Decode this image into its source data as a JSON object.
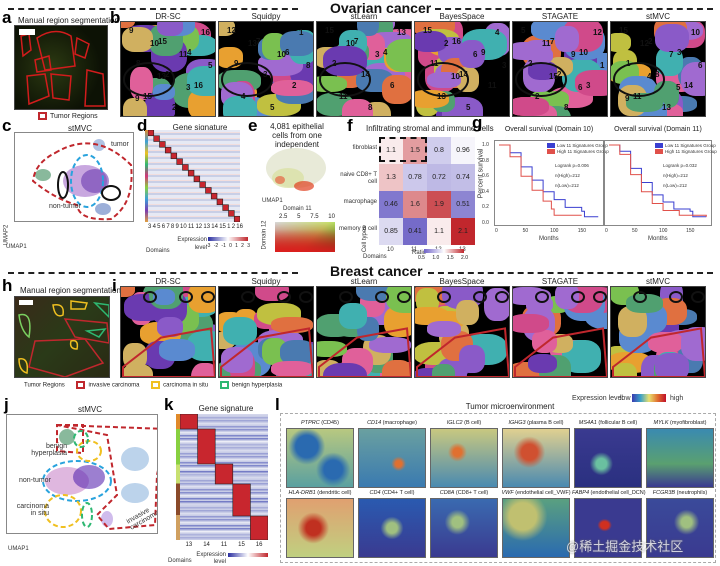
{
  "sections": {
    "ovarian": "Ovarian cancer",
    "breast": "Breast cancer"
  },
  "panels": {
    "a": {
      "label": "a",
      "title": "Manual region segmentation",
      "legend": "Tumor Regions",
      "scalebar": "1 mm"
    },
    "b": {
      "label": "b",
      "methods": [
        "DR-SC",
        "Squidpy",
        "stLearn",
        "BayesSpace",
        "STAGATE",
        "stMVC"
      ],
      "domains": [
        [
          "9",
          "15",
          "4",
          "8",
          "2",
          "16",
          "15",
          "2",
          "16",
          "10",
          "11",
          "5",
          "13",
          "3",
          "9"
        ],
        [
          "12",
          "7",
          "6",
          "9",
          "3",
          "2",
          "4",
          "5",
          "1",
          "13",
          "10",
          "8"
        ],
        [
          "15",
          "7",
          "4",
          "2",
          "14",
          "6",
          "11",
          "8",
          "13",
          "10",
          "3"
        ],
        [
          "15",
          "16",
          "9",
          "11",
          "14",
          "11",
          "13",
          "5",
          "4",
          "2",
          "6",
          "3",
          "10"
        ],
        [
          "5",
          "7",
          "10",
          "2",
          "2",
          "3",
          "2",
          "8",
          "12",
          "11",
          "9",
          "1",
          "15",
          "6"
        ],
        [
          "15",
          "2",
          "3",
          "1",
          "8",
          "14",
          "11",
          "13",
          "10",
          "12",
          "7",
          "6",
          "4",
          "5",
          "9"
        ]
      ]
    },
    "c": {
      "label": "c",
      "title": "stMVC",
      "annotations": [
        "tumor",
        "non-tumor"
      ],
      "axes": {
        "x": "UMAP1",
        "y": "UMAP2"
      },
      "clusters": [
        "5",
        "6",
        "14",
        "7",
        "2",
        "15",
        "6",
        "4",
        "10",
        "12",
        "1",
        "11",
        "13",
        "9",
        "3",
        "16"
      ]
    },
    "d": {
      "label": "d",
      "title": "Gene signature",
      "xticks": [
        "3",
        "4",
        "5",
        "6",
        "7",
        "8",
        "9",
        "10",
        "11",
        "12",
        "13",
        "14",
        "15",
        "1",
        "2",
        "16"
      ],
      "axes": {
        "x": "Domains",
        "y": "Genes"
      },
      "legend_title": "Expression level",
      "legend_ticks": [
        "-3",
        "-2",
        "-1",
        "0",
        "1",
        "2",
        "3"
      ]
    },
    "e": {
      "label": "e",
      "title": "4,081 epithelial cells from one independent patient",
      "axes": {
        "x": "UMAP1",
        "y": "UMAP2"
      },
      "colorbar": {
        "x_label": "Domain 11",
        "x_ticks": [
          "2.5",
          "5",
          "7.5",
          "10"
        ],
        "y_label": "Domain 12",
        "y_ticks": [
          "2",
          "4",
          "6",
          "8",
          "10"
        ]
      }
    },
    "f": {
      "label": "f",
      "title": "Infiltrating stromal and immune cells",
      "rows": [
        "fibroblast",
        "naive CD8+ T cell",
        "macrophage",
        "memory B cell"
      ],
      "cols": [
        "10",
        "11",
        "12",
        "13"
      ],
      "values": [
        [
          1.1,
          1.5,
          0.8,
          0.96
        ],
        [
          1.3,
          0.78,
          0.72,
          0.74
        ],
        [
          0.46,
          1.6,
          1.9,
          0.51
        ],
        [
          0.85,
          0.41,
          1.1,
          2.1
        ]
      ],
      "axes": {
        "x": "Domains",
        "y": "Cell types"
      },
      "legend_title": "Ratio",
      "legend_ticks": [
        "0.5",
        "1.0",
        "1.5",
        "2.0"
      ]
    },
    "g": {
      "label": "g",
      "plots": [
        {
          "title": "Overall survival (Domain 10)",
          "logrank": "Logrank p=0.006",
          "n_high": "n(High)=212",
          "n_low": "n(Low)=212"
        },
        {
          "title": "Overall survival (Domain 11)",
          "logrank": "Logrank p=0.032",
          "n_high": "n(High)=212",
          "n_low": "n(Low)=212"
        }
      ],
      "legend": [
        "Low 11 Signatures Group",
        "High 11 Signatures Group"
      ],
      "ylabel": "Percent survival",
      "xlabel": "Months",
      "yticks": [
        "0.0",
        "0.2",
        "0.4",
        "0.6",
        "0.8",
        "1.0"
      ],
      "xticks": [
        "0",
        "50",
        "100",
        "150"
      ],
      "colors": {
        "low": "#3a3fd0",
        "high": "#e0504a"
      }
    },
    "h": {
      "label": "h",
      "title": "Manual region segmentation",
      "scalebar": "1 mm"
    },
    "i": {
      "label": "i",
      "methods": [
        "DR-SC",
        "Squidpy",
        "stLearn",
        "BayesSpace",
        "STAGATE",
        "stMVC"
      ]
    },
    "legend_breast": {
      "title": "Tumor Regions",
      "items": [
        {
          "label": "invasive carcinoma",
          "color": "#c0272d"
        },
        {
          "label": "carcinoma in situ",
          "color": "#f0c020"
        },
        {
          "label": "benign hyperplasia",
          "color": "#2eb872"
        }
      ]
    },
    "j": {
      "label": "j",
      "title": "stMVC",
      "annotations": [
        "benign hyperplasia",
        "non-tumor",
        "carcinoma in situ",
        "invasive carcinoma"
      ],
      "axes": {
        "x": "UMAP1",
        "y": "UMAP2"
      },
      "clusters": [
        "4",
        "12",
        "6",
        "7",
        "14",
        "13",
        "15",
        "5",
        "2",
        "1",
        "3",
        "11",
        "9",
        "8",
        "5",
        "16"
      ]
    },
    "k": {
      "label": "k",
      "title": "Gene signature",
      "xticks": [
        "13",
        "14",
        "11",
        "15",
        "16"
      ],
      "axes": {
        "x": "Domains",
        "y": "Genes"
      },
      "legend_title": "Expression level",
      "legend_ticks": [
        "-1.5",
        "-1",
        "0.5",
        "0",
        "0.5",
        "1",
        "1.5"
      ]
    },
    "l": {
      "label": "l",
      "title": "Tumor microenvironment",
      "legend": {
        "title": "Expression level",
        "low": "low",
        "high": "high"
      },
      "genes": [
        {
          "gene": "PTPRC",
          "desc": " (CD45)"
        },
        {
          "gene": "CD14",
          "desc": " (macrophage)"
        },
        {
          "gene": "IGLC2",
          "desc": " (B cell)"
        },
        {
          "gene": "IGHG3",
          "desc": " (plasma B cell)"
        },
        {
          "gene": "MS4A1",
          "desc": " (follicular B cell)"
        },
        {
          "gene": "MYLK",
          "desc": " (myofibroblast)"
        },
        {
          "gene": "HLA-DRB1",
          "desc": " (dendritic cell)"
        },
        {
          "gene": "CD4",
          "desc": " (CD4+ T cell)"
        },
        {
          "gene": "CD8A",
          "desc": " (CD8+ T cell)"
        },
        {
          "gene": "VWF",
          "desc": " (endothelial cell_VWF)"
        },
        {
          "gene": "FABP4",
          "desc": " (endothelial cell_DCN)"
        },
        {
          "gene": "FCGR3B",
          "desc": " (neutrophils)"
        }
      ]
    }
  },
  "watermark": "@稀土掘金技术社区"
}
